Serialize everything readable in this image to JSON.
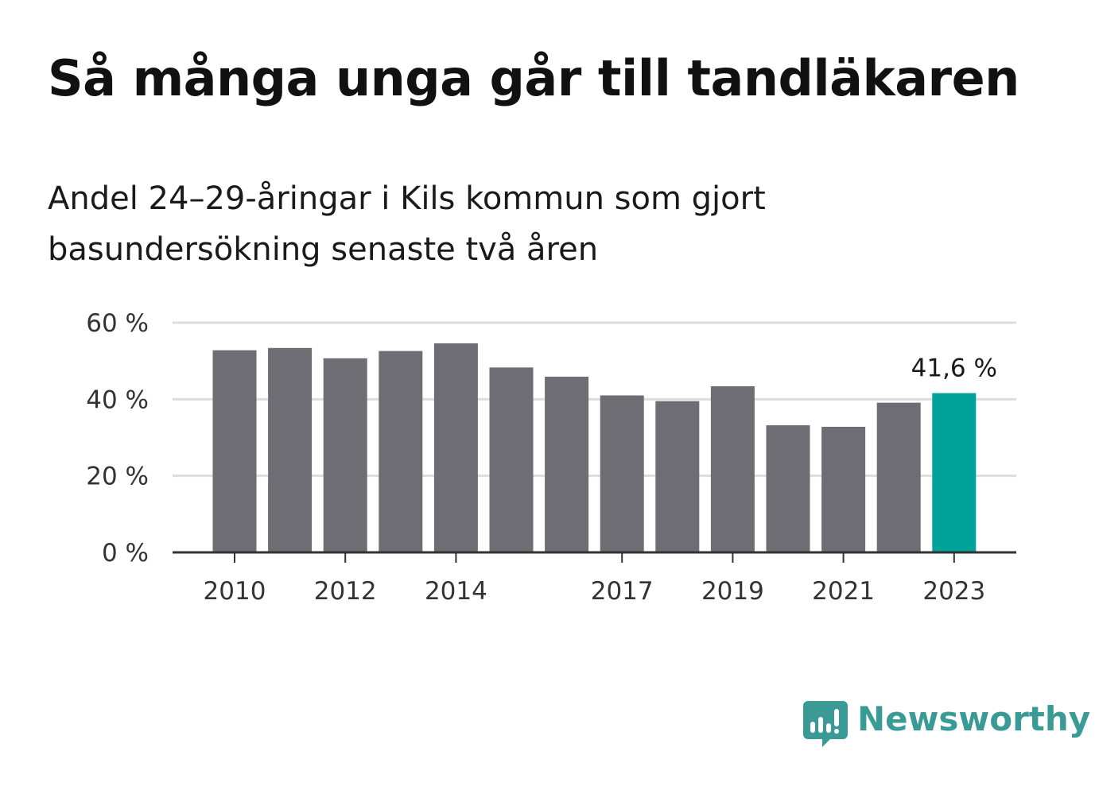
{
  "title": "Så många unga går till tandläkaren",
  "subtitle": "Andel 24–29-åringar i Kils kommun som gjort basundersökning senaste två åren",
  "brand": {
    "name": "Newsworthy",
    "color": "#3a9a95",
    "icon": "newsworthy-logo-icon"
  },
  "chart_data": {
    "type": "bar",
    "categories": [
      "2010",
      "2011",
      "2012",
      "2013",
      "2014",
      "2015",
      "2016",
      "2017",
      "2018",
      "2019",
      "2020",
      "2021",
      "2022",
      "2023"
    ],
    "values": [
      52.8,
      53.4,
      50.7,
      52.6,
      54.6,
      48.3,
      45.9,
      41.0,
      39.5,
      43.4,
      33.2,
      32.8,
      39.1,
      41.6
    ],
    "x_tick_labels": [
      "2010",
      "2012",
      "2014",
      "2017",
      "2019",
      "2021",
      "2023"
    ],
    "y_ticks": [
      0,
      20,
      40,
      60
    ],
    "y_tick_labels": [
      "0 %",
      "20 %",
      "40 %",
      "60 %"
    ],
    "ylim": [
      0,
      60
    ],
    "grid": true,
    "highlight": {
      "category": "2023",
      "label": "41,6 %",
      "color": "#00a29a"
    },
    "bar_color": "#6e6d73",
    "xlabel": "",
    "ylabel": ""
  }
}
